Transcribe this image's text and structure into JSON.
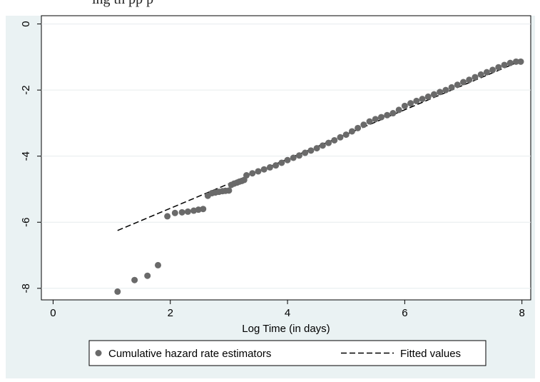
{
  "page": {
    "top_caption": "ing th     pp p"
  },
  "chart_data": {
    "type": "scatter",
    "title": "",
    "xlabel": "Log Time (in days)",
    "ylabel": "",
    "xlim": [
      -0.2,
      8.15
    ],
    "ylim": [
      -8.35,
      0.25
    ],
    "xticks": [
      0,
      2,
      4,
      6,
      8
    ],
    "yticks": [
      0,
      -2,
      -4,
      -6,
      -8
    ],
    "xtick_labels": [
      "0",
      "2",
      "4",
      "6",
      "8"
    ],
    "ytick_labels": [
      "0",
      "-2",
      "-4",
      "-6",
      "-8"
    ],
    "grid": "horizontal",
    "legend_position": "bottom",
    "colors": {
      "background": "#eaf2f3",
      "plot_area": "#ffffff",
      "grid": "#e6ecee",
      "points": "#6a6a6a",
      "fit": "#000000"
    },
    "series": [
      {
        "name": "Cumulative hazard rate estimators",
        "kind": "scatter",
        "points": [
          [
            1.1,
            -8.1
          ],
          [
            1.39,
            -7.75
          ],
          [
            1.61,
            -7.62
          ],
          [
            1.79,
            -7.3
          ],
          [
            1.95,
            -5.82
          ],
          [
            2.08,
            -5.72
          ],
          [
            2.2,
            -5.7
          ],
          [
            2.3,
            -5.68
          ],
          [
            2.4,
            -5.65
          ],
          [
            2.48,
            -5.62
          ],
          [
            2.56,
            -5.6
          ],
          [
            2.64,
            -5.2
          ],
          [
            2.71,
            -5.12
          ],
          [
            2.77,
            -5.1
          ],
          [
            2.83,
            -5.08
          ],
          [
            2.89,
            -5.06
          ],
          [
            2.94,
            -5.05
          ],
          [
            3.0,
            -5.04
          ],
          [
            3.04,
            -4.87
          ],
          [
            3.09,
            -4.83
          ],
          [
            3.14,
            -4.8
          ],
          [
            3.18,
            -4.77
          ],
          [
            3.22,
            -4.75
          ],
          [
            3.26,
            -4.72
          ],
          [
            3.3,
            -4.58
          ],
          [
            3.4,
            -4.52
          ],
          [
            3.5,
            -4.46
          ],
          [
            3.6,
            -4.4
          ],
          [
            3.7,
            -4.34
          ],
          [
            3.8,
            -4.28
          ],
          [
            3.9,
            -4.2
          ],
          [
            4.0,
            -4.12
          ],
          [
            4.1,
            -4.05
          ],
          [
            4.2,
            -3.98
          ],
          [
            4.3,
            -3.9
          ],
          [
            4.4,
            -3.83
          ],
          [
            4.5,
            -3.76
          ],
          [
            4.6,
            -3.68
          ],
          [
            4.7,
            -3.6
          ],
          [
            4.8,
            -3.52
          ],
          [
            4.9,
            -3.43
          ],
          [
            5.0,
            -3.35
          ],
          [
            5.1,
            -3.25
          ],
          [
            5.2,
            -3.15
          ],
          [
            5.3,
            -3.05
          ],
          [
            5.4,
            -2.95
          ],
          [
            5.5,
            -2.88
          ],
          [
            5.6,
            -2.82
          ],
          [
            5.7,
            -2.76
          ],
          [
            5.8,
            -2.7
          ],
          [
            5.9,
            -2.6
          ],
          [
            6.0,
            -2.48
          ],
          [
            6.1,
            -2.4
          ],
          [
            6.2,
            -2.33
          ],
          [
            6.3,
            -2.27
          ],
          [
            6.4,
            -2.2
          ],
          [
            6.5,
            -2.13
          ],
          [
            6.6,
            -2.06
          ],
          [
            6.7,
            -2.0
          ],
          [
            6.8,
            -1.92
          ],
          [
            6.9,
            -1.84
          ],
          [
            7.0,
            -1.76
          ],
          [
            7.1,
            -1.69
          ],
          [
            7.2,
            -1.61
          ],
          [
            7.3,
            -1.53
          ],
          [
            7.4,
            -1.46
          ],
          [
            7.5,
            -1.39
          ],
          [
            7.6,
            -1.31
          ],
          [
            7.7,
            -1.24
          ],
          [
            7.8,
            -1.18
          ],
          [
            7.9,
            -1.14
          ],
          [
            7.98,
            -1.14
          ]
        ]
      },
      {
        "name": "Fitted values",
        "kind": "line",
        "style": "dashed",
        "points": [
          [
            1.1,
            -6.25
          ],
          [
            7.98,
            -1.12
          ]
        ]
      }
    ]
  }
}
